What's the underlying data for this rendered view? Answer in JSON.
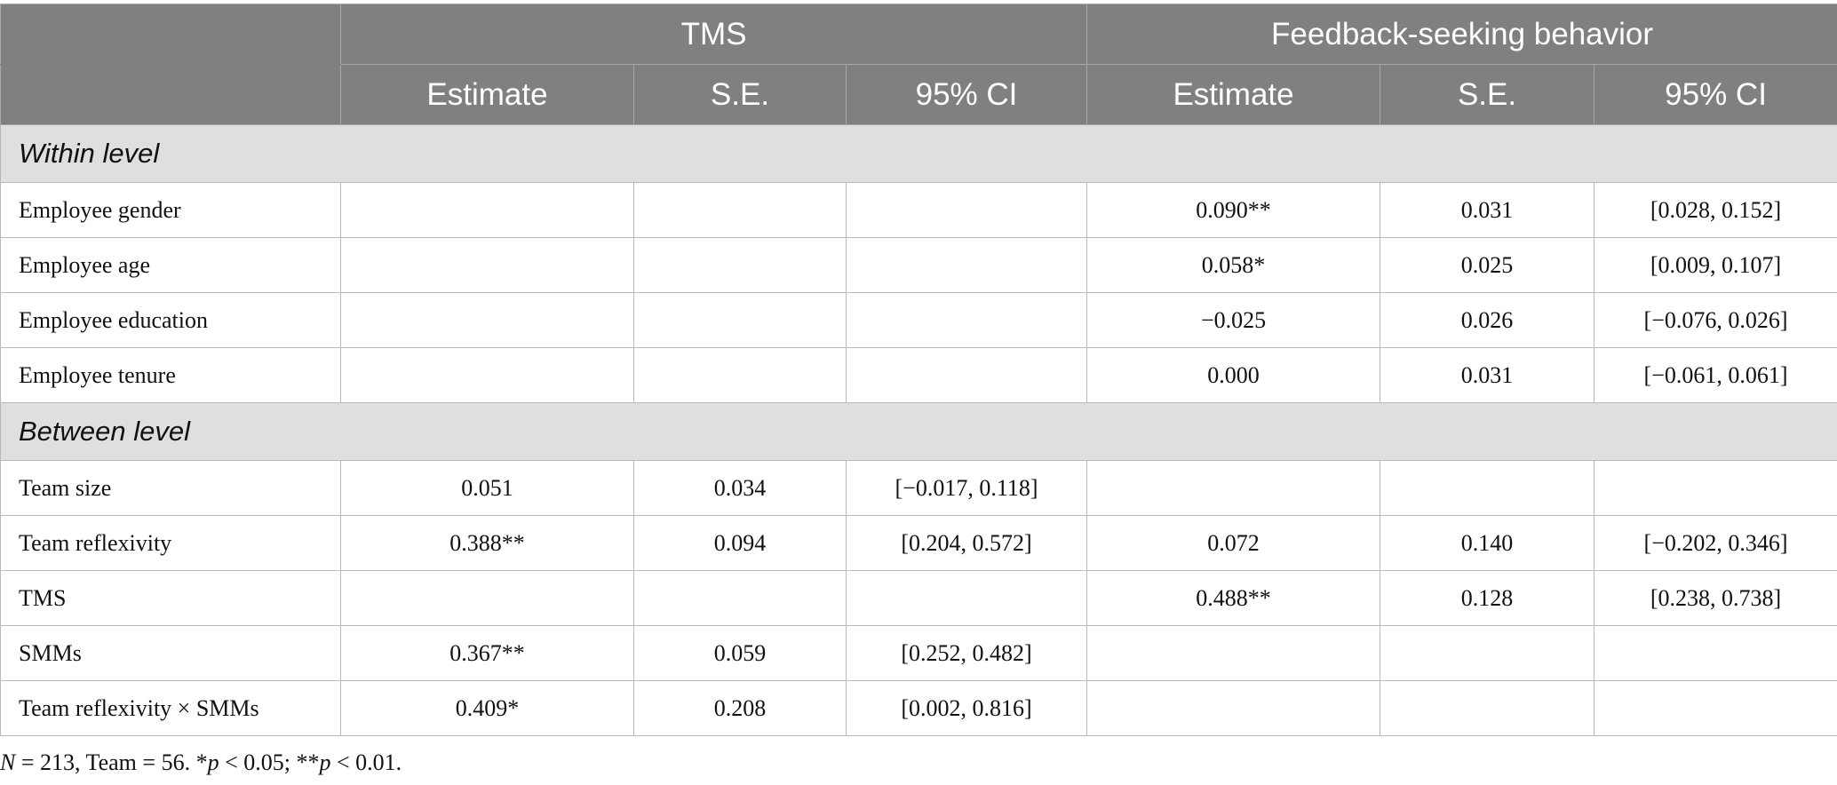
{
  "header": {
    "groups": [
      "TMS",
      "Feedback-seeking behavior"
    ],
    "subcolumns": [
      "Estimate",
      "S.E.",
      "95% CI",
      "Estimate",
      "S.E.",
      "95% CI"
    ]
  },
  "sections": [
    {
      "title": "Within level",
      "rows": [
        {
          "label": "Employee gender",
          "cells": [
            "",
            "",
            "",
            "0.090**",
            "0.031",
            "[0.028, 0.152]"
          ]
        },
        {
          "label": "Employee age",
          "cells": [
            "",
            "",
            "",
            "0.058*",
            "0.025",
            "[0.009, 0.107]"
          ]
        },
        {
          "label": "Employee education",
          "cells": [
            "",
            "",
            "",
            "−0.025",
            "0.026",
            "[−0.076, 0.026]"
          ]
        },
        {
          "label": "Employee tenure",
          "cells": [
            "",
            "",
            "",
            "0.000",
            "0.031",
            "[−0.061, 0.061]"
          ]
        }
      ]
    },
    {
      "title": "Between level",
      "rows": [
        {
          "label": "Team size",
          "cells": [
            "0.051",
            "0.034",
            "[−0.017, 0.118]",
            "",
            "",
            ""
          ]
        },
        {
          "label": "Team reflexivity",
          "cells": [
            "0.388**",
            "0.094",
            "[0.204, 0.572]",
            "0.072",
            "0.140",
            "[−0.202, 0.346]"
          ]
        },
        {
          "label": "TMS",
          "cells": [
            "",
            "",
            "",
            "0.488**",
            "0.128",
            "[0.238, 0.738]"
          ]
        },
        {
          "label": "SMMs",
          "cells": [
            "0.367**",
            "0.059",
            "[0.252, 0.482]",
            "",
            "",
            ""
          ]
        },
        {
          "label": "Team reflexivity × SMMs",
          "cells": [
            "0.409*",
            "0.208",
            "[0.002, 0.816]",
            "",
            "",
            ""
          ]
        }
      ]
    }
  ],
  "footnote": {
    "n_symbol": "N",
    "n_text": " = 213, Team = 56. *",
    "p1_symbol": "p",
    "p1_text": " < 0.05; **",
    "p2_symbol": "p",
    "p2_text": " < 0.01."
  }
}
